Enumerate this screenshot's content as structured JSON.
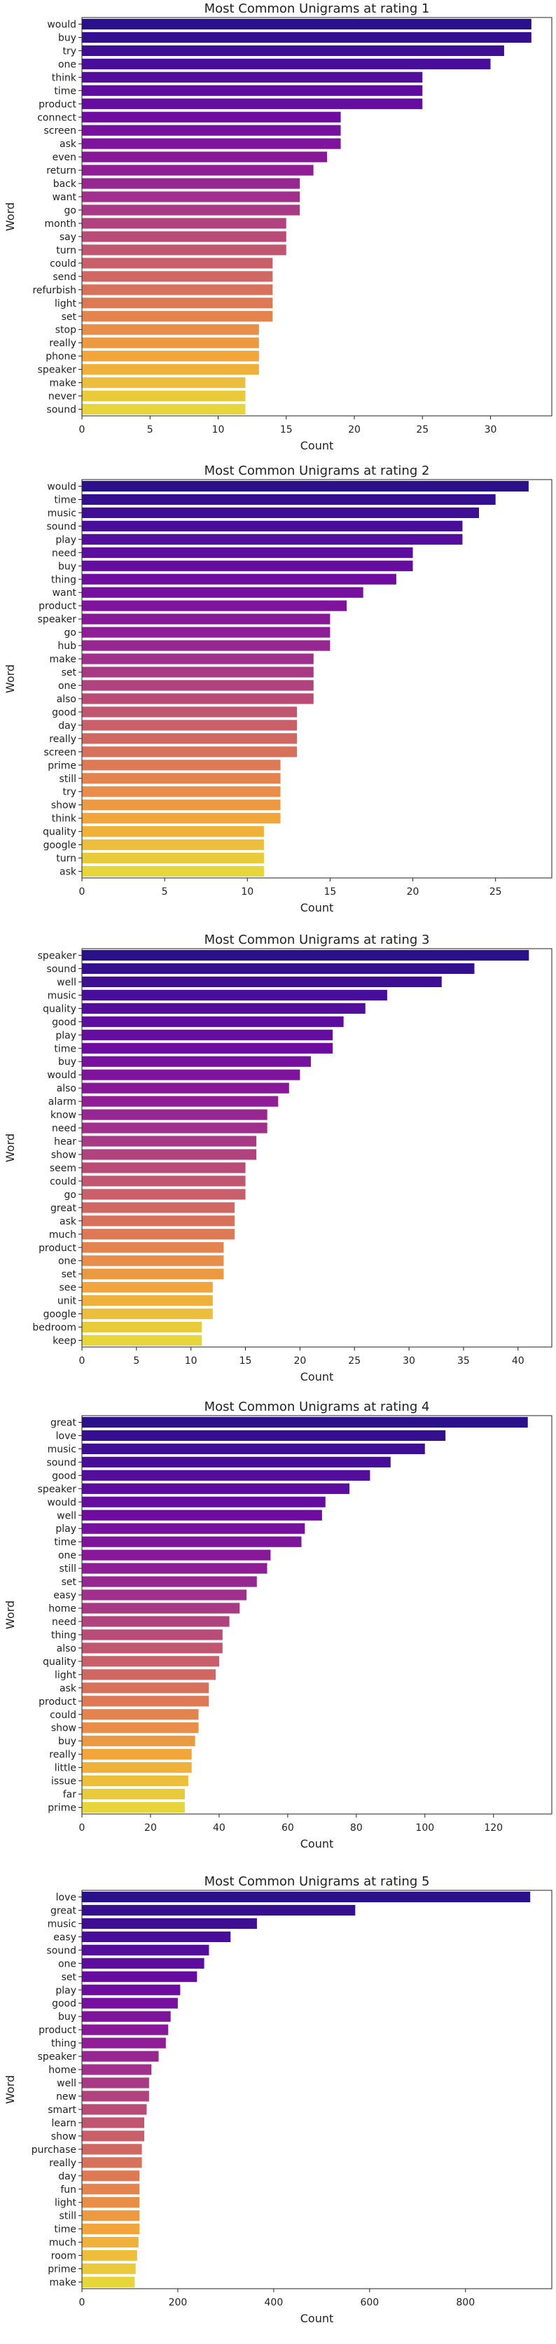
{
  "chart_data": [
    {
      "type": "bar",
      "orientation": "horizontal",
      "title": "Most Common Unigrams at rating 1",
      "xlabel": "Count",
      "ylabel": "Word",
      "categories": [
        "would",
        "buy",
        "try",
        "one",
        "think",
        "time",
        "product",
        "connect",
        "screen",
        "ask",
        "even",
        "return",
        "back",
        "want",
        "go",
        "month",
        "say",
        "turn",
        "could",
        "send",
        "refurbish",
        "light",
        "set",
        "stop",
        "really",
        "phone",
        "speaker",
        "make",
        "never",
        "sound"
      ],
      "values": [
        33,
        33,
        31,
        30,
        25,
        25,
        25,
        19,
        19,
        19,
        18,
        17,
        16,
        16,
        16,
        15,
        15,
        15,
        14,
        14,
        14,
        14,
        14,
        13,
        13,
        13,
        13,
        12,
        12,
        12
      ],
      "xlim": [
        0,
        34.5
      ],
      "xticks": [
        0,
        5,
        10,
        15,
        20,
        25,
        30
      ],
      "grid": false,
      "palette": "plasma"
    },
    {
      "type": "bar",
      "orientation": "horizontal",
      "title": "Most Common Unigrams at rating 2",
      "xlabel": "Count",
      "ylabel": "Word",
      "categories": [
        "would",
        "time",
        "music",
        "sound",
        "play",
        "need",
        "buy",
        "thing",
        "want",
        "product",
        "speaker",
        "go",
        "hub",
        "make",
        "set",
        "one",
        "also",
        "good",
        "day",
        "really",
        "screen",
        "prime",
        "still",
        "try",
        "show",
        "think",
        "quality",
        "google",
        "turn",
        "ask"
      ],
      "values": [
        27,
        25,
        24,
        23,
        23,
        20,
        20,
        19,
        17,
        16,
        15,
        15,
        15,
        14,
        14,
        14,
        14,
        13,
        13,
        13,
        13,
        12,
        12,
        12,
        12,
        12,
        11,
        11,
        11,
        11
      ],
      "xlim": [
        0,
        28.4
      ],
      "xticks": [
        0,
        5,
        10,
        15,
        20,
        25
      ],
      "grid": false,
      "palette": "plasma"
    },
    {
      "type": "bar",
      "orientation": "horizontal",
      "title": "Most Common Unigrams at rating 3",
      "xlabel": "Count",
      "ylabel": "Word",
      "categories": [
        "speaker",
        "sound",
        "well",
        "music",
        "quality",
        "good",
        "play",
        "time",
        "buy",
        "would",
        "also",
        "alarm",
        "know",
        "need",
        "hear",
        "show",
        "seem",
        "could",
        "go",
        "great",
        "ask",
        "much",
        "product",
        "one",
        "set",
        "see",
        "unit",
        "google",
        "bedroom",
        "keep"
      ],
      "values": [
        41,
        36,
        33,
        28,
        26,
        24,
        23,
        23,
        21,
        20,
        19,
        18,
        17,
        17,
        16,
        16,
        15,
        15,
        15,
        14,
        14,
        14,
        13,
        13,
        13,
        12,
        12,
        12,
        11,
        11
      ],
      "xlim": [
        0,
        43.1
      ],
      "xticks": [
        0,
        5,
        10,
        15,
        20,
        25,
        30,
        35,
        40
      ],
      "grid": false,
      "palette": "plasma"
    },
    {
      "type": "bar",
      "orientation": "horizontal",
      "title": "Most Common Unigrams at rating 4",
      "xlabel": "Count",
      "ylabel": "Word",
      "categories": [
        "great",
        "love",
        "music",
        "sound",
        "good",
        "speaker",
        "would",
        "well",
        "play",
        "time",
        "one",
        "still",
        "set",
        "easy",
        "home",
        "need",
        "thing",
        "also",
        "quality",
        "light",
        "ask",
        "product",
        "could",
        "show",
        "buy",
        "really",
        "little",
        "issue",
        "far",
        "prime"
      ],
      "values": [
        130,
        106,
        100,
        90,
        84,
        78,
        71,
        70,
        65,
        64,
        55,
        54,
        51,
        48,
        46,
        43,
        41,
        41,
        40,
        39,
        37,
        37,
        34,
        34,
        33,
        32,
        32,
        31,
        30,
        30
      ],
      "xlim": [
        0,
        137
      ],
      "xticks": [
        0,
        20,
        40,
        60,
        80,
        100,
        120
      ],
      "grid": false,
      "palette": "plasma"
    },
    {
      "type": "bar",
      "orientation": "horizontal",
      "title": "Most Common Unigrams at rating 5",
      "xlabel": "Count",
      "ylabel": "Word",
      "categories": [
        "love",
        "great",
        "music",
        "easy",
        "sound",
        "one",
        "set",
        "play",
        "good",
        "buy",
        "product",
        "thing",
        "speaker",
        "home",
        "well",
        "new",
        "smart",
        "learn",
        "show",
        "purchase",
        "really",
        "day",
        "fun",
        "light",
        "still",
        "time",
        "much",
        "room",
        "prime",
        "make"
      ],
      "values": [
        935,
        570,
        365,
        310,
        265,
        255,
        240,
        205,
        200,
        185,
        180,
        175,
        160,
        145,
        140,
        140,
        135,
        130,
        130,
        125,
        125,
        120,
        120,
        120,
        120,
        120,
        118,
        115,
        112,
        110
      ],
      "xlim": [
        0,
        980
      ],
      "xticks": [
        0,
        200,
        400,
        600,
        800
      ],
      "grid": false,
      "palette": "plasma"
    }
  ]
}
